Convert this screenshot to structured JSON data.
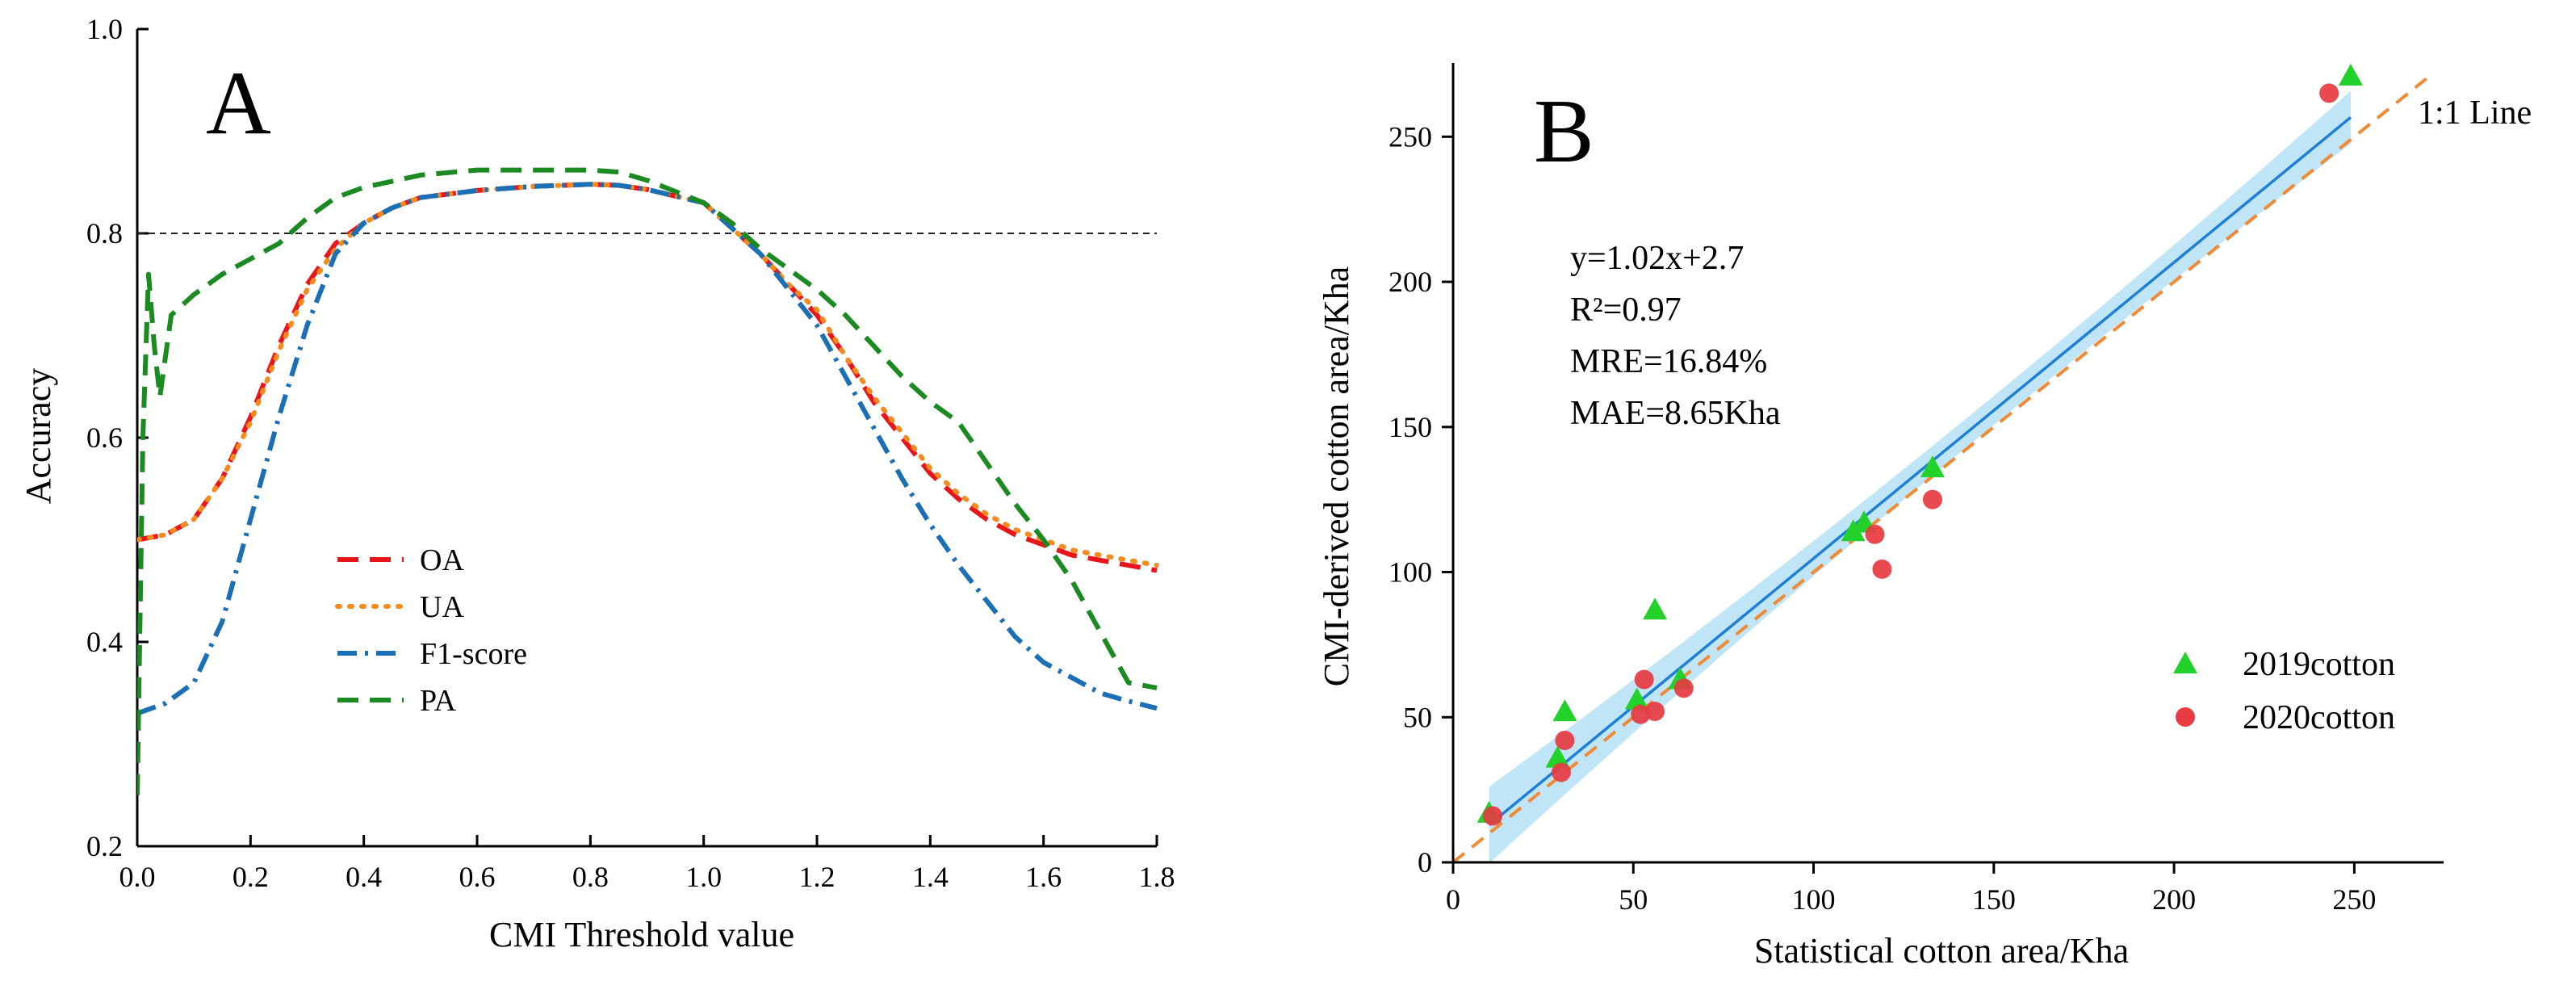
{
  "chart_data": [
    {
      "type": "line",
      "panel_label": "A",
      "xlabel": "CMI Threshold value",
      "ylabel": "Accuracy",
      "xlim": [
        0.0,
        1.8
      ],
      "ylim": [
        0.2,
        1.0
      ],
      "xticks": [
        "0.0",
        "0.2",
        "0.4",
        "0.6",
        "0.8",
        "1.0",
        "1.2",
        "1.4",
        "1.6",
        "1.8"
      ],
      "yticks": [
        "0.2",
        "0.4",
        "0.6",
        "0.8",
        "1.0"
      ],
      "reference_line": {
        "y": 0.8,
        "style": "dashed"
      },
      "legend": {
        "placement": "center-left"
      },
      "series": [
        {
          "name": "OA",
          "color": "#e8151b",
          "dash": "long-dash",
          "x": [
            0.0,
            0.05,
            0.1,
            0.15,
            0.2,
            0.25,
            0.3,
            0.35,
            0.4,
            0.45,
            0.5,
            0.6,
            0.7,
            0.8,
            0.85,
            0.9,
            1.0,
            1.05,
            1.1,
            1.15,
            1.2,
            1.25,
            1.3,
            1.35,
            1.4,
            1.45,
            1.5,
            1.55,
            1.6,
            1.65,
            1.7,
            1.75,
            1.8
          ],
          "y": [
            0.5,
            0.505,
            0.52,
            0.56,
            0.62,
            0.69,
            0.75,
            0.79,
            0.81,
            0.825,
            0.835,
            0.842,
            0.846,
            0.848,
            0.847,
            0.843,
            0.83,
            0.805,
            0.78,
            0.75,
            0.72,
            0.68,
            0.635,
            0.6,
            0.565,
            0.54,
            0.52,
            0.505,
            0.495,
            0.485,
            0.48,
            0.475,
            0.47
          ]
        },
        {
          "name": "UA",
          "color": "#f58a1f",
          "dash": "dotted",
          "x": [
            0.0,
            0.05,
            0.1,
            0.15,
            0.2,
            0.25,
            0.3,
            0.35,
            0.4,
            0.45,
            0.5,
            0.6,
            0.7,
            0.8,
            0.85,
            0.9,
            1.0,
            1.05,
            1.1,
            1.15,
            1.2,
            1.25,
            1.3,
            1.35,
            1.4,
            1.45,
            1.5,
            1.55,
            1.6,
            1.65,
            1.7,
            1.75,
            1.8
          ],
          "y": [
            0.5,
            0.505,
            0.52,
            0.56,
            0.615,
            0.685,
            0.745,
            0.785,
            0.81,
            0.825,
            0.835,
            0.842,
            0.846,
            0.848,
            0.847,
            0.843,
            0.83,
            0.805,
            0.78,
            0.75,
            0.725,
            0.68,
            0.64,
            0.605,
            0.57,
            0.545,
            0.525,
            0.51,
            0.5,
            0.49,
            0.485,
            0.48,
            0.475
          ]
        },
        {
          "name": "F1-score",
          "color": "#1b6fb5",
          "dash": "dash-dot",
          "x": [
            0.0,
            0.05,
            0.1,
            0.15,
            0.2,
            0.25,
            0.3,
            0.35,
            0.4,
            0.45,
            0.5,
            0.6,
            0.7,
            0.8,
            0.85,
            0.9,
            1.0,
            1.05,
            1.1,
            1.15,
            1.2,
            1.25,
            1.3,
            1.35,
            1.4,
            1.45,
            1.5,
            1.55,
            1.6,
            1.65,
            1.7,
            1.75,
            1.8
          ],
          "y": [
            0.33,
            0.34,
            0.36,
            0.42,
            0.52,
            0.62,
            0.71,
            0.78,
            0.81,
            0.825,
            0.835,
            0.842,
            0.846,
            0.848,
            0.847,
            0.843,
            0.83,
            0.805,
            0.78,
            0.745,
            0.71,
            0.66,
            0.61,
            0.56,
            0.515,
            0.475,
            0.44,
            0.405,
            0.38,
            0.365,
            0.35,
            0.342,
            0.335
          ]
        },
        {
          "name": "PA",
          "color": "#1a8a21",
          "dash": "long-dash",
          "x": [
            0.0,
            0.01,
            0.02,
            0.03,
            0.04,
            0.06,
            0.1,
            0.15,
            0.2,
            0.25,
            0.3,
            0.35,
            0.4,
            0.5,
            0.6,
            0.7,
            0.8,
            0.85,
            0.9,
            1.0,
            1.05,
            1.1,
            1.15,
            1.2,
            1.25,
            1.3,
            1.35,
            1.4,
            1.45,
            1.5,
            1.55,
            1.6,
            1.65,
            1.7,
            1.75,
            1.8
          ],
          "y": [
            0.25,
            0.6,
            0.76,
            0.69,
            0.64,
            0.72,
            0.74,
            0.76,
            0.775,
            0.79,
            0.815,
            0.835,
            0.845,
            0.857,
            0.862,
            0.862,
            0.862,
            0.86,
            0.852,
            0.83,
            0.81,
            0.785,
            0.765,
            0.745,
            0.72,
            0.69,
            0.66,
            0.635,
            0.615,
            0.575,
            0.535,
            0.5,
            0.46,
            0.41,
            0.36,
            0.355
          ]
        }
      ]
    },
    {
      "type": "scatter",
      "panel_label": "B",
      "xlabel": "Statistical cotton area/Kha",
      "ylabel": "CMI-derived cotton area/Kha",
      "xlim": [
        0,
        275
      ],
      "ylim": [
        0,
        275
      ],
      "xticks": [
        "0",
        "50",
        "100",
        "150",
        "200",
        "250"
      ],
      "yticks": [
        "0",
        "50",
        "100",
        "150",
        "200",
        "250"
      ],
      "equation_lines": [
        "y=1.02x+2.7",
        "R²=0.97",
        "MRE=16.84%",
        "MAE=8.65Kha"
      ],
      "one_to_one_label": "1:1 Line",
      "fit": {
        "slope": 1.02,
        "intercept": 2.7,
        "x_range": [
          10,
          249
        ],
        "color": "#1f7fd4",
        "band_color": "#a9dcf4"
      },
      "one_to_one": {
        "x_range": [
          0,
          270
        ],
        "color": "#f08a34"
      },
      "legend": {
        "placement": "bottom-right"
      },
      "series": [
        {
          "name": "2019cotton",
          "marker": "triangle",
          "color": "#22d12a",
          "x": [
            10,
            29,
            31,
            51,
            56,
            63,
            111,
            114,
            133,
            249
          ],
          "y": [
            17,
            36,
            52,
            56,
            87,
            63,
            114,
            117,
            136,
            271
          ]
        },
        {
          "name": "2020cotton",
          "marker": "circle",
          "color": "#e63b41",
          "x": [
            11,
            30,
            31,
            52,
            53,
            56,
            64,
            117,
            119,
            133,
            243
          ],
          "y": [
            16,
            31,
            42,
            51,
            63,
            52,
            60,
            113,
            101,
            125,
            265
          ]
        }
      ]
    }
  ]
}
